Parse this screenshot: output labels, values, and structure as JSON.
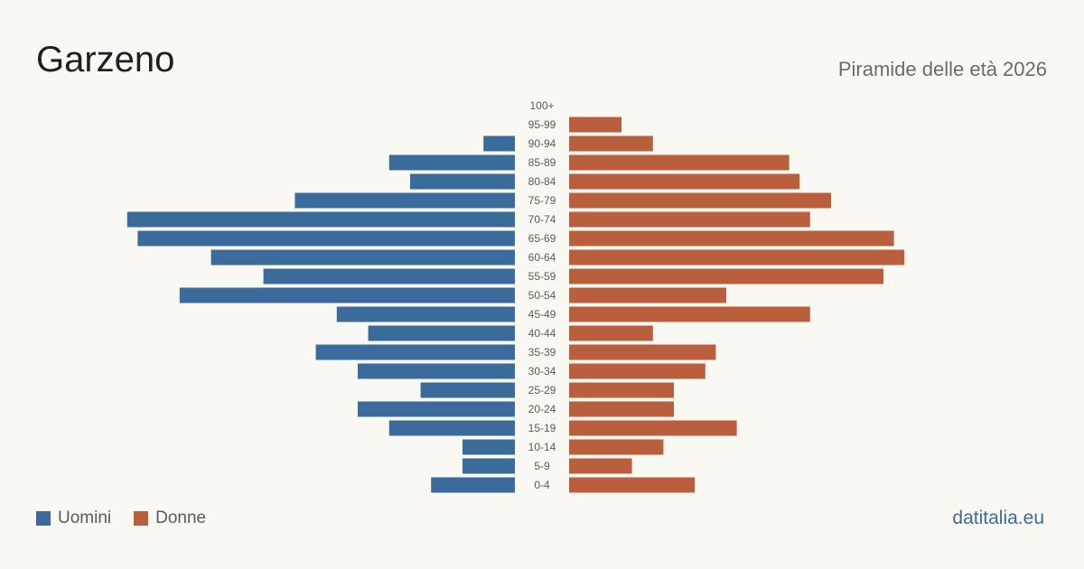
{
  "title": "Garzeno",
  "subtitle": "Piramide delle età 2026",
  "brand": "datitalia.eu",
  "colors": {
    "men": "#3a6b9b",
    "women": "#b95f3e"
  },
  "chart_data": {
    "type": "bar",
    "orientation": "horizontal-pyramid",
    "categories": [
      "100+",
      "95-99",
      "90-94",
      "85-89",
      "80-84",
      "75-79",
      "70-74",
      "65-69",
      "60-64",
      "55-59",
      "50-54",
      "45-49",
      "40-44",
      "35-39",
      "30-34",
      "25-29",
      "20-24",
      "15-19",
      "10-14",
      "5-9",
      "0-4"
    ],
    "series": [
      {
        "name": "Uomini",
        "values": [
          0,
          0,
          3,
          12,
          10,
          21,
          37,
          36,
          29,
          24,
          32,
          17,
          14,
          19,
          15,
          9,
          15,
          12,
          5,
          5,
          8
        ]
      },
      {
        "name": "Donne",
        "values": [
          0,
          5,
          8,
          21,
          22,
          25,
          23,
          31,
          32,
          30,
          15,
          23,
          8,
          14,
          13,
          10,
          10,
          16,
          9,
          6,
          12
        ]
      }
    ],
    "legend": "bottom-left"
  }
}
